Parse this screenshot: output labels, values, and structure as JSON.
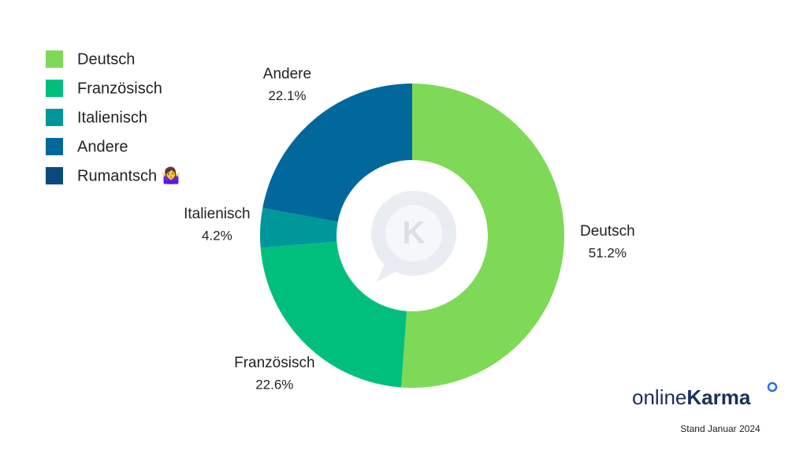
{
  "chart_data": {
    "type": "donut",
    "categories": [
      "Deutsch",
      "Französisch",
      "Italienisch",
      "Andere",
      "Rumantsch 🤷‍♀️"
    ],
    "values": [
      51.2,
      22.6,
      4.2,
      22.1,
      null
    ],
    "value_labels": [
      "51.2%",
      "22.6%",
      "4.2%",
      "22.1%",
      null
    ],
    "colors": [
      "#7ed957",
      "#00bf7d",
      "#00979a",
      "#00689b",
      "#0a4a7e"
    ],
    "legend": "top-left"
  },
  "brand": {
    "part1": "online",
    "part2": "Karma"
  },
  "note": "Stand Januar 2024"
}
